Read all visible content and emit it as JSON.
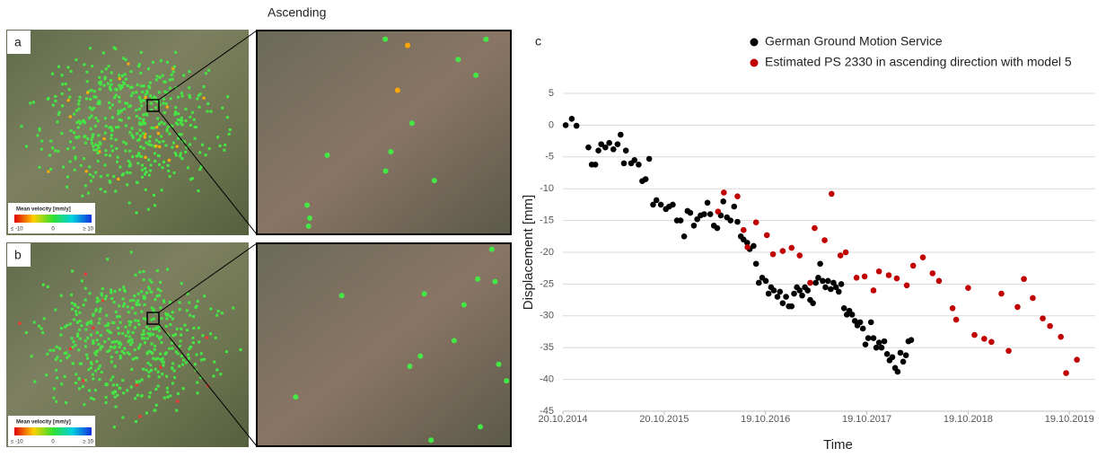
{
  "figure": {
    "heading": "Ascending",
    "panel_a": "a",
    "panel_b": "b",
    "panel_c": "c",
    "colorbar": {
      "title": "Mean velocity [mm/y]",
      "min_label": "≤ -10",
      "mid_label": "0",
      "max_label": "≥ 10"
    }
  },
  "chart_data": {
    "type": "scatter",
    "xlabel": "Time",
    "ylabel": "Displacement [mm]",
    "xlim": [
      "2014-10-20",
      "2020-01-20"
    ],
    "xticks": [
      {
        "value": "2014-10-20",
        "label": "20.10.2014"
      },
      {
        "value": "2015-10-20",
        "label": "20.10.2015"
      },
      {
        "value": "2016-10-19",
        "label": "19.10.2016"
      },
      {
        "value": "2017-10-19",
        "label": "19.10.2017"
      },
      {
        "value": "2018-10-19",
        "label": "19.10.2018"
      },
      {
        "value": "2019-10-19",
        "label": "19.10.2019"
      }
    ],
    "ylim": [
      -45,
      5
    ],
    "yticks": [
      5,
      0,
      -5,
      -10,
      -15,
      -20,
      -25,
      -30,
      -35,
      -40,
      -45
    ],
    "grid": true,
    "series": [
      {
        "name": "German Ground Motion Service",
        "color": "#000000",
        "x": [
          "2014-10-30",
          "2014-11-21",
          "2014-12-08",
          "2015-01-20",
          "2015-02-01",
          "2015-02-14",
          "2015-02-25",
          "2015-03-07",
          "2015-03-22",
          "2015-04-05",
          "2015-04-20",
          "2015-05-05",
          "2015-05-16",
          "2015-05-28",
          "2015-06-04",
          "2015-06-23",
          "2015-07-05",
          "2015-07-20",
          "2015-08-02",
          "2015-08-14",
          "2015-08-27",
          "2015-09-10",
          "2015-09-22",
          "2015-10-08",
          "2015-10-26",
          "2015-11-07",
          "2015-11-20",
          "2015-12-05",
          "2015-12-18",
          "2015-12-31",
          "2016-01-12",
          "2016-01-22",
          "2016-02-04",
          "2016-02-16",
          "2016-02-28",
          "2016-03-12",
          "2016-03-24",
          "2016-04-03",
          "2016-04-16",
          "2016-04-28",
          "2016-05-11",
          "2016-05-20",
          "2016-06-02",
          "2016-06-15",
          "2016-06-28",
          "2016-07-10",
          "2016-07-22",
          "2016-08-01",
          "2016-08-14",
          "2016-08-23",
          "2016-09-06",
          "2016-09-15",
          "2016-09-25",
          "2016-10-07",
          "2016-10-20",
          "2016-10-30",
          "2016-11-08",
          "2016-11-18",
          "2016-12-01",
          "2016-12-10",
          "2016-12-20",
          "2017-01-01",
          "2017-01-11",
          "2017-01-21",
          "2017-01-30",
          "2017-02-09",
          "2017-02-19",
          "2017-02-28",
          "2017-03-10",
          "2017-03-20",
          "2017-03-29",
          "2017-04-08",
          "2017-04-18",
          "2017-04-27",
          "2017-05-04",
          "2017-05-13",
          "2017-05-23",
          "2017-06-01",
          "2017-06-11",
          "2017-06-21",
          "2017-06-30",
          "2017-07-10",
          "2017-07-19",
          "2017-07-29",
          "2017-08-08",
          "2017-08-17",
          "2017-08-27",
          "2017-09-06",
          "2017-09-15",
          "2017-09-25",
          "2017-10-05",
          "2017-10-14",
          "2017-10-24",
          "2017-11-03",
          "2017-11-12",
          "2017-11-22",
          "2017-12-02",
          "2017-12-11",
          "2017-12-21",
          "2017-12-31",
          "2018-01-09",
          "2018-01-19",
          "2018-01-29",
          "2018-02-07",
          "2018-02-17",
          "2018-02-27",
          "2018-03-09",
          "2018-03-18",
          "2018-03-28"
        ],
        "values": [
          0,
          1,
          -0.1,
          -3.5,
          -6.2,
          -6.2,
          -4,
          -3,
          -3.5,
          -2.8,
          -3.8,
          -3,
          -1.5,
          -6,
          -4,
          -6,
          -5.5,
          -6.2,
          -8.8,
          -8.5,
          -5.3,
          -12.5,
          -11.8,
          -12.5,
          -13.2,
          -12.8,
          -12.5,
          -15,
          -15,
          -17.5,
          -13.5,
          -13.8,
          -15.8,
          -14.8,
          -14.2,
          -14,
          -12.2,
          -14,
          -15.8,
          -16.2,
          -14.2,
          -12,
          -14.5,
          -15,
          -12.8,
          -15.2,
          -17.5,
          -18,
          -18.5,
          -19.5,
          -19,
          -21.8,
          -24.8,
          -24,
          -24.5,
          -26.5,
          -25.5,
          -26,
          -27,
          -26.2,
          -28,
          -27,
          -28.5,
          -28.5,
          -26.5,
          -25.5,
          -26,
          -26.8,
          -25.5,
          -26,
          -27.5,
          -28,
          -24.8,
          -24,
          -21.8,
          -24.5,
          -25.5,
          -24.5,
          -25.8,
          -24.8,
          -25.5,
          -26.2,
          -25,
          -28.8,
          -29.8,
          -29.2,
          -29.8,
          -30.8,
          -31.5,
          -31,
          -32,
          -34.5,
          -33.5,
          -31,
          -33.5,
          -35,
          -34.2,
          -35,
          -34,
          -36,
          -37,
          -36.5,
          -38.2,
          -38.8,
          -35.8,
          -37.2,
          -36.2,
          -34,
          -33.8
        ]
      },
      {
        "name": "Estimated PS 2330 in ascending direction with model 5",
        "color": "#c00000",
        "x": [
          "2016-05-01",
          "2016-05-22",
          "2016-07-10",
          "2016-08-01",
          "2016-08-15",
          "2016-09-15",
          "2016-10-24",
          "2016-11-15",
          "2016-12-20",
          "2017-01-21",
          "2017-02-19",
          "2017-03-29",
          "2017-04-14",
          "2017-05-20",
          "2017-06-14",
          "2017-07-16",
          "2017-08-04",
          "2017-09-12",
          "2017-10-11",
          "2017-11-12",
          "2017-12-02",
          "2018-01-06",
          "2018-02-04",
          "2018-03-12",
          "2018-04-04",
          "2018-05-09",
          "2018-06-13",
          "2018-07-06",
          "2018-08-24",
          "2018-09-06",
          "2018-10-19",
          "2018-11-11",
          "2018-12-16",
          "2019-01-11",
          "2019-02-16",
          "2019-03-14",
          "2019-04-15",
          "2019-05-08",
          "2019-06-09",
          "2019-07-15",
          "2019-08-10",
          "2019-09-18",
          "2019-10-07",
          "2019-11-15"
        ],
        "values": [
          -13.6,
          -10.6,
          -11.2,
          -16.5,
          -19.2,
          -15.3,
          -17.3,
          -20.3,
          -19.8,
          -19.3,
          -20.5,
          -24.8,
          -16.2,
          -18.1,
          -10.8,
          -20.5,
          -20,
          -24,
          -23.8,
          -26,
          -23,
          -23.6,
          -24.1,
          -25.2,
          -22.1,
          -20.8,
          -23.3,
          -24.5,
          -28.8,
          -30.6,
          -25.6,
          -33,
          -33.6,
          -34.1,
          -26.5,
          -35.5,
          -28.6,
          -24.2,
          -27.2,
          -30.4,
          -31.6,
          -33.3,
          -39,
          -36.9
        ]
      }
    ]
  }
}
